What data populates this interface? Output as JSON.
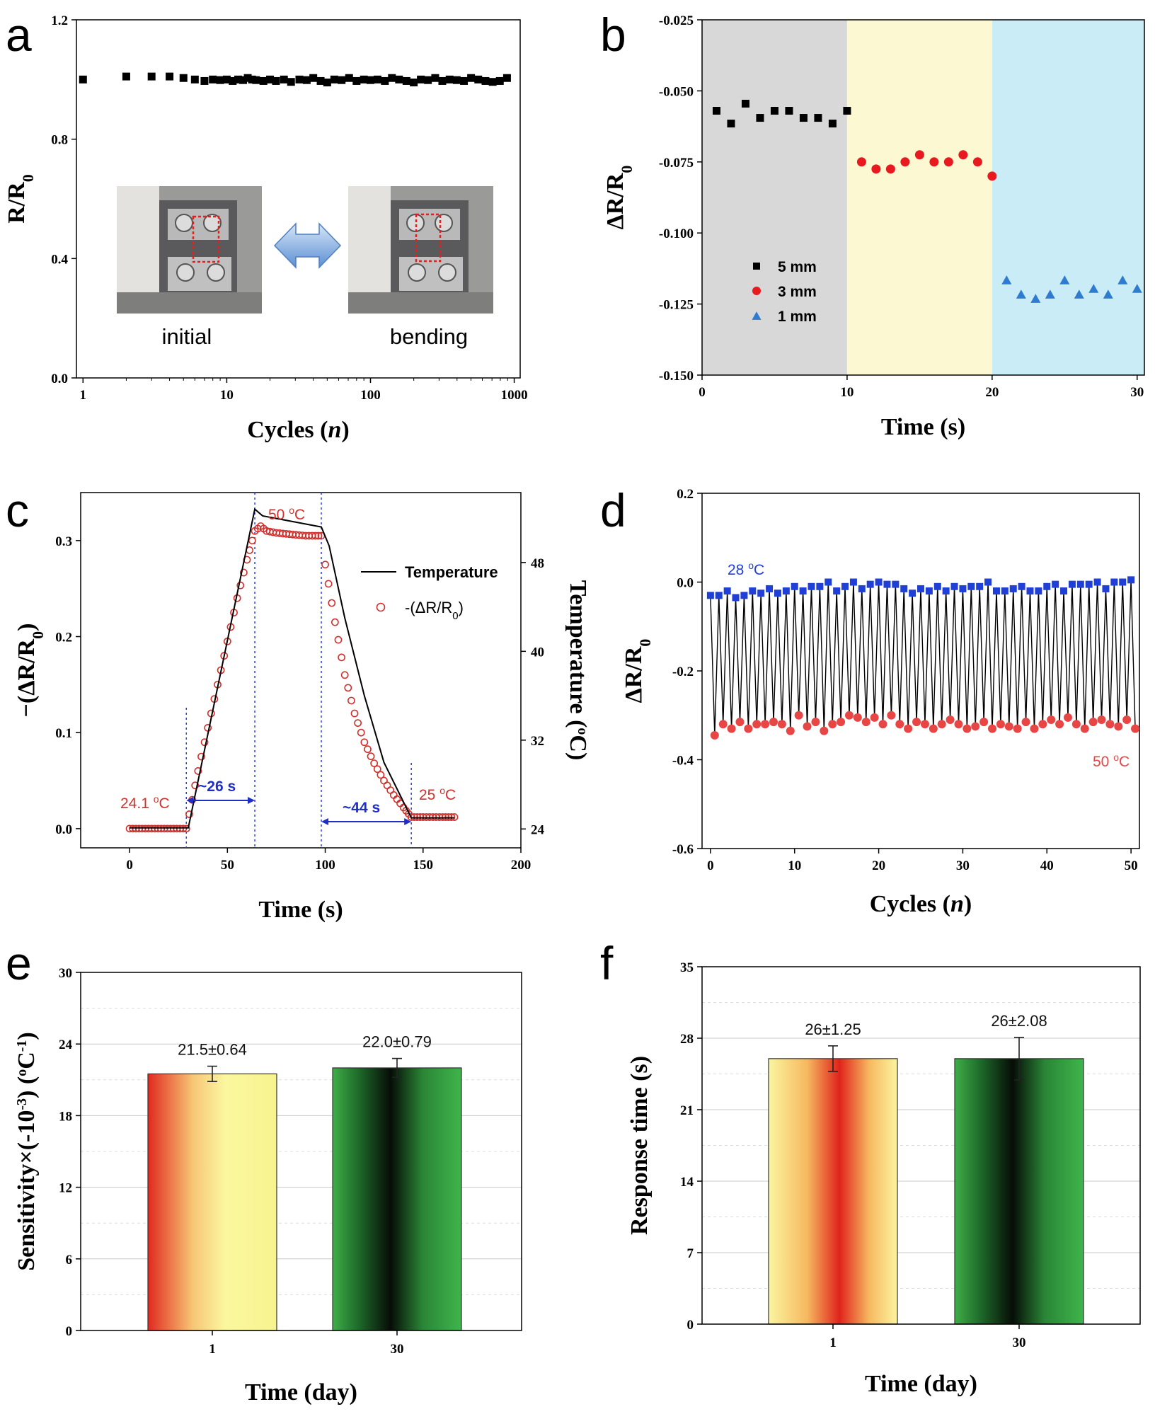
{
  "chart_data": [
    {
      "panel": "a",
      "type": "scatter",
      "xscale": "log",
      "xlabel_prefix": "Cycles (",
      "xlabel_var": "n",
      "xlabel_suffix": ")",
      "ylabel": "R/R",
      "ylabel_sub": "0",
      "xlim": [
        0.9,
        1100
      ],
      "ylim": [
        0,
        1.2
      ],
      "xticks": [
        {
          "v": 1,
          "label": "1"
        },
        {
          "v": 10,
          "label": "10"
        },
        {
          "v": 100,
          "label": "100"
        },
        {
          "v": 1000,
          "label": "1000"
        }
      ],
      "yticks": [
        {
          "v": 0,
          "label": "0.0"
        },
        {
          "v": 0.4,
          "label": "0.4"
        },
        {
          "v": 0.8,
          "label": "0.8"
        },
        {
          "v": 1.2,
          "label": "1.2"
        }
      ],
      "marker": "square",
      "color": "#000000",
      "x": [
        1,
        2,
        3,
        4,
        5,
        6,
        7,
        8,
        9,
        10,
        11,
        12,
        13,
        14,
        15,
        16,
        18,
        20,
        22,
        25,
        28,
        32,
        36,
        40,
        45,
        50,
        56,
        63,
        71,
        80,
        90,
        100,
        112,
        126,
        141,
        158,
        178,
        200,
        224,
        251,
        282,
        316,
        355,
        398,
        447,
        501,
        562,
        631,
        708,
        794,
        891
      ],
      "y": [
        1.0,
        1.01,
        1.01,
        1.01,
        1.005,
        1.0,
        0.995,
        1.0,
        0.998,
        1.0,
        0.995,
        1.0,
        0.998,
        1.005,
        1.0,
        0.998,
        0.995,
        1.0,
        0.995,
        1.0,
        0.992,
        1.0,
        0.998,
        1.005,
        0.995,
        0.99,
        1.0,
        0.998,
        1.005,
        0.995,
        1.0,
        0.998,
        1.0,
        0.995,
        1.005,
        1.0,
        0.995,
        0.99,
        1.0,
        0.998,
        1.005,
        0.995,
        1.0,
        0.998,
        0.995,
        1.005,
        1.0,
        0.995,
        0.992,
        0.995,
        1.005
      ],
      "inset_labels": {
        "left": "initial",
        "right": "bending"
      }
    },
    {
      "panel": "b",
      "type": "scatter",
      "xlabel": "Time (s)",
      "ylabel": "ΔR/R",
      "ylabel_sub": "0",
      "xlim": [
        0,
        30.5
      ],
      "ylim": [
        -0.15,
        -0.025
      ],
      "xticks": [
        {
          "v": 0,
          "label": "0"
        },
        {
          "v": 10,
          "label": "10"
        },
        {
          "v": 20,
          "label": "20"
        },
        {
          "v": 30,
          "label": "30"
        }
      ],
      "yticks": [
        {
          "v": -0.15,
          "label": "-0.150"
        },
        {
          "v": -0.125,
          "label": "-0.125"
        },
        {
          "v": -0.1,
          "label": "-0.100"
        },
        {
          "v": -0.075,
          "label": "-0.075"
        },
        {
          "v": -0.05,
          "label": "-0.050"
        },
        {
          "v": -0.025,
          "label": "-0.025"
        }
      ],
      "regions": [
        {
          "x0": 0,
          "x1": 10,
          "color": "#d8d8d8"
        },
        {
          "x0": 10,
          "x1": 20,
          "color": "#fcf9d2"
        },
        {
          "x0": 20,
          "x1": 30.5,
          "color": "#c9ecf7"
        }
      ],
      "series": [
        {
          "name": "5 mm",
          "marker": "square",
          "color": "#000000",
          "x": [
            1,
            2,
            3,
            4,
            5,
            6,
            7,
            8,
            9,
            10
          ],
          "values": [
            -0.057,
            -0.0615,
            -0.0545,
            -0.0595,
            -0.057,
            -0.057,
            -0.0595,
            -0.0595,
            -0.0615,
            -0.057
          ]
        },
        {
          "name": "3 mm",
          "marker": "circle",
          "color": "#e8191f",
          "x": [
            11,
            12,
            13,
            14,
            15,
            16,
            17,
            18,
            19,
            20
          ],
          "values": [
            -0.075,
            -0.0775,
            -0.0775,
            -0.075,
            -0.0725,
            -0.075,
            -0.075,
            -0.0725,
            -0.075,
            -0.08
          ]
        },
        {
          "name": "1 mm",
          "marker": "triangle",
          "color": "#2f7bd0",
          "x": [
            21,
            22,
            23,
            24,
            25,
            26,
            27,
            28,
            29,
            30
          ],
          "values": [
            -0.1165,
            -0.1215,
            -0.123,
            -0.1215,
            -0.1165,
            -0.1215,
            -0.1195,
            -0.1215,
            -0.1165,
            -0.1195
          ]
        }
      ]
    },
    {
      "panel": "c",
      "type": "line",
      "xlabel": "Time (s)",
      "ylabel": "−(ΔR/R",
      "ylabel_sub": "0",
      "ylabel_end": ")",
      "y2label": "Temperature (",
      "y2label_sup": "o",
      "y2label_end": "C)",
      "xlim": [
        -25,
        200
      ],
      "ylim": [
        -0.02,
        0.35
      ],
      "y2lim": [
        22.3,
        54.3
      ],
      "xticks": [
        {
          "v": 0,
          "label": "0"
        },
        {
          "v": 50,
          "label": "50"
        },
        {
          "v": 100,
          "label": "100"
        },
        {
          "v": 150,
          "label": "150"
        },
        {
          "v": 200,
          "label": "200"
        }
      ],
      "yticks": [
        {
          "v": 0,
          "label": "0.0"
        },
        {
          "v": 0.1,
          "label": "0.1"
        },
        {
          "v": 0.2,
          "label": "0.2"
        },
        {
          "v": 0.3,
          "label": "0.3"
        }
      ],
      "y2ticks": [
        {
          "v": 24,
          "label": "24"
        },
        {
          "v": 32,
          "label": "32"
        },
        {
          "v": 40,
          "label": "40"
        },
        {
          "v": 48,
          "label": "48"
        }
      ],
      "series": [
        {
          "name": "Temperature",
          "axis": "right",
          "color": "#000000",
          "x": [
            0,
            30,
            64,
            68,
            98,
            102,
            110,
            120,
            130,
            144,
            166
          ],
          "values": [
            24.1,
            24.1,
            52.8,
            52.2,
            51.2,
            49.5,
            43,
            36,
            30,
            25,
            25
          ]
        },
        {
          "name": "-(ΔR/R",
          "name_sub": "0",
          "name_end": ")",
          "axis": "left",
          "marker": "open-circle",
          "color": "#d0312d",
          "x": [
            0,
            29,
            35,
            40,
            45,
            50,
            55,
            60,
            64,
            67,
            70,
            75,
            80,
            85,
            90,
            95,
            98,
            100,
            105,
            110,
            115,
            120,
            125,
            130,
            135,
            140,
            144,
            150,
            155,
            160,
            166
          ],
          "values": [
            0,
            0,
            0.06,
            0.105,
            0.15,
            0.195,
            0.24,
            0.28,
            0.31,
            0.315,
            0.31,
            0.308,
            0.307,
            0.306,
            0.305,
            0.305,
            0.305,
            0.275,
            0.215,
            0.16,
            0.12,
            0.09,
            0.068,
            0.05,
            0.035,
            0.022,
            0.012,
            0.012,
            0.012,
            0.012,
            0.012
          ]
        }
      ],
      "annotations": [
        {
          "text": "24.1 ",
          "sup": "o",
          "end": "C",
          "color": "#d0312d"
        },
        {
          "text": "50 ",
          "sup": "o",
          "end": "C",
          "color": "#d0312d"
        },
        {
          "text": "25 ",
          "sup": "o",
          "end": "C",
          "color": "#d0312d"
        },
        {
          "text": "~26 s",
          "color": "#1f2ec4"
        },
        {
          "text": "~44 s",
          "color": "#1f2ec4"
        }
      ],
      "vlines": [
        29,
        64,
        98,
        144
      ]
    },
    {
      "panel": "d",
      "type": "line",
      "xlabel_prefix": "Cycles (",
      "xlabel_var": "n",
      "xlabel_suffix": ")",
      "ylabel": "ΔR/R",
      "ylabel_sub": "0",
      "xlim": [
        -1,
        51
      ],
      "ylim": [
        -0.6,
        0.2
      ],
      "xticks": [
        {
          "v": 0,
          "label": "0"
        },
        {
          "v": 10,
          "label": "10"
        },
        {
          "v": 20,
          "label": "20"
        },
        {
          "v": 30,
          "label": "30"
        },
        {
          "v": 40,
          "label": "40"
        },
        {
          "v": 50,
          "label": "50"
        }
      ],
      "yticks": [
        {
          "v": -0.6,
          "label": "-0.6"
        },
        {
          "v": -0.4,
          "label": "-0.4"
        },
        {
          "v": -0.2,
          "label": "-0.2"
        },
        {
          "v": 0,
          "label": "0.0"
        },
        {
          "v": 0.2,
          "label": "0.2"
        }
      ],
      "series": [
        {
          "name": "28 °C",
          "marker": "square",
          "color": "#1f3fd6",
          "values": [
            -0.03,
            -0.03,
            -0.02,
            -0.035,
            -0.03,
            -0.02,
            -0.025,
            -0.015,
            -0.025,
            -0.02,
            -0.01,
            -0.02,
            -0.01,
            -0.01,
            0.0,
            -0.02,
            -0.01,
            0.0,
            -0.015,
            -0.005,
            0.0,
            -0.005,
            -0.005,
            -0.015,
            -0.025,
            -0.015,
            -0.02,
            -0.01,
            -0.02,
            -0.01,
            -0.015,
            -0.01,
            -0.01,
            0.0,
            -0.02,
            -0.02,
            -0.015,
            -0.01,
            -0.02,
            -0.02,
            -0.01,
            -0.005,
            -0.02,
            -0.005,
            -0.005,
            -0.005,
            0.0,
            -0.015,
            0.0,
            0.0,
            0.005
          ]
        },
        {
          "name": "50 °C",
          "marker": "circle",
          "color": "#e84545",
          "values": [
            -0.345,
            -0.32,
            -0.33,
            -0.315,
            -0.33,
            -0.32,
            -0.32,
            -0.315,
            -0.32,
            -0.335,
            -0.3,
            -0.325,
            -0.315,
            -0.335,
            -0.32,
            -0.315,
            -0.3,
            -0.305,
            -0.315,
            -0.305,
            -0.32,
            -0.3,
            -0.32,
            -0.33,
            -0.315,
            -0.32,
            -0.33,
            -0.32,
            -0.31,
            -0.32,
            -0.33,
            -0.325,
            -0.315,
            -0.33,
            -0.32,
            -0.325,
            -0.33,
            -0.315,
            -0.33,
            -0.32,
            -0.31,
            -0.32,
            -0.305,
            -0.32,
            -0.33,
            -0.315,
            -0.31,
            -0.32,
            -0.325,
            -0.31,
            -0.33
          ]
        }
      ],
      "annotations": [
        {
          "text": "28 ",
          "sup": "o",
          "end": "C",
          "color": "#1f3fd6"
        },
        {
          "text": "50 ",
          "sup": "o",
          "end": "C",
          "color": "#e84545"
        }
      ]
    },
    {
      "panel": "e",
      "type": "bar",
      "xlabel": "Time (day)",
      "ylabel": "Sensitivity×(-10",
      "ylabel_sup": "-3",
      "ylabel_mid": ") (",
      "ylabel_sup2": "o",
      "ylabel_end": "C",
      "ylabel_sup3": "-1",
      "ylabel_close": ")",
      "categories": [
        "1",
        "30"
      ],
      "values": [
        21.5,
        22.0
      ],
      "errors": [
        0.64,
        0.79
      ],
      "value_labels": [
        "21.5±0.64",
        "22.0±0.79"
      ],
      "ylim": [
        0,
        30
      ],
      "yticks": [
        {
          "v": 0,
          "label": "0"
        },
        {
          "v": 6,
          "label": "6"
        },
        {
          "v": 12,
          "label": "12"
        },
        {
          "v": 18,
          "label": "18"
        },
        {
          "v": 24,
          "label": "24"
        },
        {
          "v": 30,
          "label": "30"
        }
      ],
      "bar_styles": [
        "redyellow",
        "green"
      ]
    },
    {
      "panel": "f",
      "type": "bar",
      "xlabel": "Time (day)",
      "ylabel": "Response time (s)",
      "categories": [
        "1",
        "30"
      ],
      "values": [
        26,
        26
      ],
      "errors": [
        1.25,
        2.08
      ],
      "value_labels": [
        "26±1.25",
        "26±2.08"
      ],
      "ylim": [
        0,
        35
      ],
      "yticks": [
        {
          "v": 0,
          "label": "0"
        },
        {
          "v": 7,
          "label": "7"
        },
        {
          "v": 14,
          "label": "14"
        },
        {
          "v": 21,
          "label": "21"
        },
        {
          "v": 28,
          "label": "28"
        },
        {
          "v": 35,
          "label": "35"
        }
      ],
      "bar_styles": [
        "yellowred",
        "green"
      ]
    }
  ],
  "panel_letters": [
    "a",
    "b",
    "c",
    "d",
    "e",
    "f"
  ]
}
